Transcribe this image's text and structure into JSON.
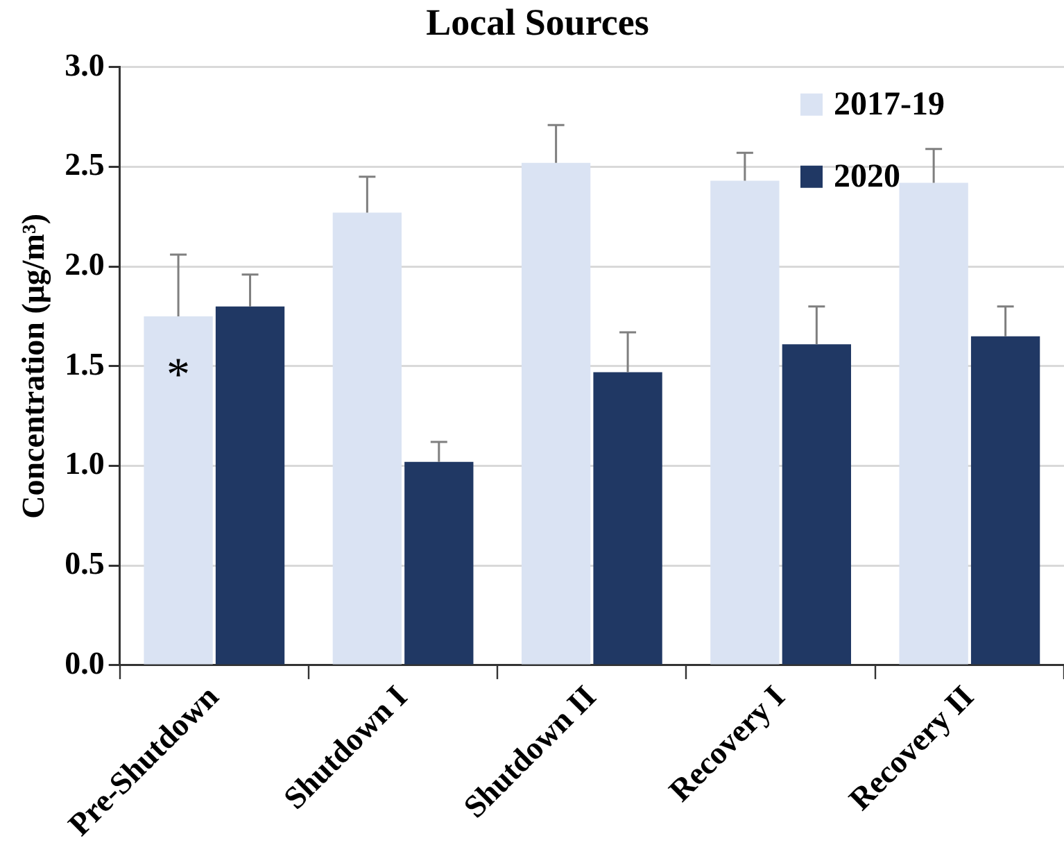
{
  "chart_data": {
    "type": "bar",
    "title": "Local Sources",
    "ylabel": "Concentration (μg/m³)",
    "categories": [
      "Pre-Shutdown",
      "Shutdown I",
      "Shutdown II",
      "Recovery I",
      "Recovery II"
    ],
    "series": [
      {
        "name": "2017-19",
        "color": "#dae3f3",
        "values": [
          1.75,
          2.27,
          2.52,
          2.43,
          2.42
        ],
        "errors": [
          [
            1.75,
            2.06
          ],
          [
            2.27,
            2.45
          ],
          [
            2.52,
            2.71
          ],
          [
            2.43,
            2.57
          ],
          [
            2.42,
            2.59
          ]
        ]
      },
      {
        "name": "2020",
        "color": "#203864",
        "values": [
          1.8,
          1.02,
          1.47,
          1.61,
          1.65
        ],
        "errors": [
          [
            1.8,
            1.96
          ],
          [
            1.02,
            1.12
          ],
          [
            1.47,
            1.67
          ],
          [
            1.61,
            1.8
          ],
          [
            1.65,
            1.8
          ]
        ]
      }
    ],
    "ylim": [
      0,
      3
    ],
    "yticks": [
      {
        "value": 0,
        "label": "0.0"
      },
      {
        "value": 0.5,
        "label": "0.5"
      },
      {
        "value": 1,
        "label": "1.0"
      },
      {
        "value": 1.5,
        "label": "1.5"
      },
      {
        "value": 2,
        "label": "2.0"
      },
      {
        "value": 2.5,
        "label": "2.5"
      },
      {
        "value": 3,
        "label": "3.0"
      }
    ],
    "grid": "y",
    "legend": "top right",
    "annotations": [
      {
        "text": "*",
        "x": "Pre-Shutdown",
        "y": 1.5
      }
    ]
  }
}
